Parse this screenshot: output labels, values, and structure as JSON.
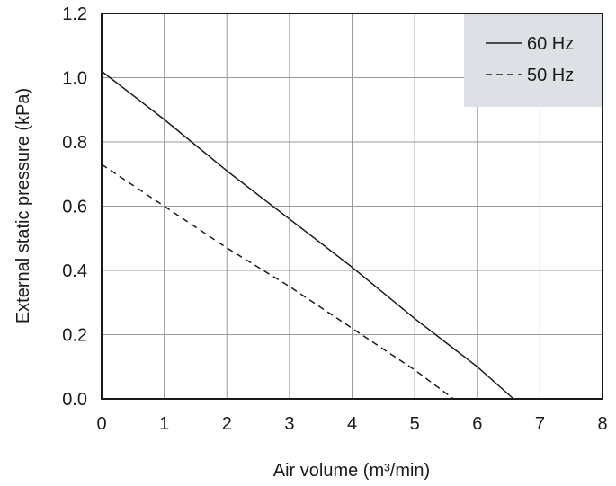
{
  "chart_data": {
    "type": "line",
    "xlabel": "Air volume (m³/min)",
    "ylabel": "External static pressure (kPa)",
    "xlim": [
      0,
      8
    ],
    "ylim": [
      0,
      1.2
    ],
    "x_ticks": [
      "0",
      "1",
      "2",
      "3",
      "4",
      "5",
      "6",
      "7",
      "8"
    ],
    "y_ticks": [
      "0.0",
      "0.2",
      "0.4",
      "0.6",
      "0.8",
      "1.0",
      "1.2"
    ],
    "grid": true,
    "legend_position": "top-right",
    "legend_background": "#dde1e6",
    "series": [
      {
        "name": "60 Hz",
        "style": "solid",
        "color": "#1a1a1a",
        "x": [
          0,
          1,
          2,
          3,
          4,
          5,
          6,
          6.58
        ],
        "y": [
          1.02,
          0.87,
          0.71,
          0.56,
          0.41,
          0.25,
          0.1,
          0.0
        ]
      },
      {
        "name": "50 Hz",
        "style": "dashed",
        "color": "#1a1a1a",
        "x": [
          0,
          1,
          2,
          3,
          4,
          5,
          5.62
        ],
        "y": [
          0.73,
          0.6,
          0.47,
          0.35,
          0.22,
          0.09,
          0.0
        ]
      }
    ]
  }
}
